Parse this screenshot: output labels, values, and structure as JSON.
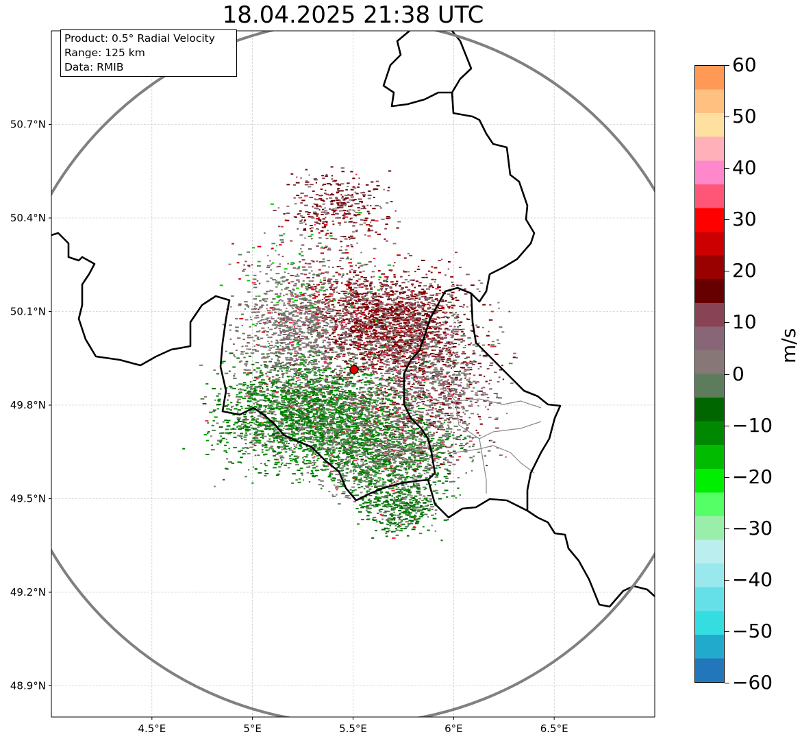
{
  "title": "18.04.2025 21:38 UTC",
  "info": {
    "product": "Product: 0.5° Radial Velocity",
    "range": "Range: 125 km",
    "data": "Data: RMIB"
  },
  "map": {
    "lon_range": [
      4.0,
      7.0
    ],
    "lat_range": [
      48.8,
      51.0
    ],
    "radar_site": {
      "lon": 5.505,
      "lat": 49.914,
      "color": "#e00000"
    },
    "range_ring_color": "#808080",
    "x_ticks": [
      {
        "lon": 4.5,
        "label": "4.5°E"
      },
      {
        "lon": 5.0,
        "label": "5°E"
      },
      {
        "lon": 5.5,
        "label": "5.5°E"
      },
      {
        "lon": 6.0,
        "label": "6°E"
      },
      {
        "lon": 6.5,
        "label": "6.5°E"
      }
    ],
    "y_ticks": [
      {
        "lat": 50.7,
        "label": "50.7°N"
      },
      {
        "lat": 50.4,
        "label": "50.4°N"
      },
      {
        "lat": 50.1,
        "label": "50.1°N"
      },
      {
        "lat": 49.8,
        "label": "49.8°N"
      },
      {
        "lat": 49.5,
        "label": "49.5°N"
      },
      {
        "lat": 49.2,
        "label": "49.2°N"
      },
      {
        "lat": 48.9,
        "label": "48.9°N"
      }
    ]
  },
  "colorbar": {
    "unit": "m/s",
    "range": [
      -60,
      60
    ],
    "ticks": [
      "60",
      "50",
      "40",
      "30",
      "20",
      "10",
      "0",
      "−10",
      "−20",
      "−30",
      "−40",
      "−50",
      "−60"
    ],
    "colors": [
      "#ff9955",
      "#ffc080",
      "#ffe0a0",
      "#ffb0b8",
      "#ff88cc",
      "#ff5577",
      "#ff0000",
      "#cc0000",
      "#990000",
      "#660000",
      "#884455",
      "#886677",
      "#887777",
      "#5c7c5c",
      "#006600",
      "#008800",
      "#00bb00",
      "#00ee00",
      "#55ff66",
      "#99eeaa",
      "#bbeeee",
      "#99e8ee",
      "#66e0e8",
      "#33dde0",
      "#22aacc",
      "#2277bb"
    ]
  }
}
